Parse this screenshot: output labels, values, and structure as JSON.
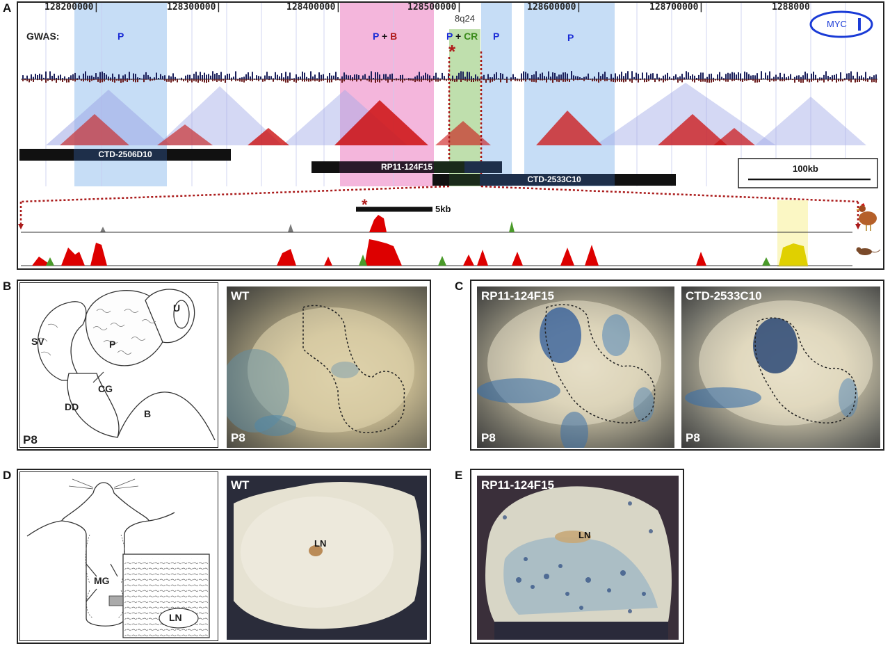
{
  "panels": {
    "A": "A",
    "B": "B",
    "C": "C",
    "D": "D",
    "E": "E"
  },
  "panelA": {
    "coordinates": [
      "128200000|",
      "128300000|",
      "128400000|",
      "128500000|",
      "128600000|",
      "128700000|",
      "1288000"
    ],
    "band": "8q24",
    "gwas_label": "GWAS:",
    "gwas_bands": {
      "p1": "P",
      "pb_p": "P",
      "pb_plus": "+",
      "pb_b": "B",
      "pcr_p": "P",
      "pcr_plus": "+",
      "pcr_cr": "CR",
      "p3": "P",
      "p4": "P"
    },
    "myc_label": "MYC",
    "clones": [
      "CTD-2506D10",
      "RP11-124F15",
      "CTD-2533C10"
    ],
    "scale_100kb": "100kb",
    "scale_5kb": "5kb",
    "asterisk": "*",
    "colors": {
      "prostate": "#bcd7f5",
      "prostate_breast": "#f2a9d6",
      "colorectal": "#b8dca4",
      "ld_red": "#cc1111",
      "ld_blue": "#9fa8e6",
      "conservation": "#dd0000",
      "dotted": "#aa1a1a"
    }
  },
  "panelB": {
    "drawing_labels": {
      "U": "U",
      "SV": "SV",
      "P": "P",
      "CG": "CG",
      "DD": "DD",
      "B": "B",
      "stage": "P8"
    },
    "photo_top": "WT",
    "photo_stage": "P8"
  },
  "panelC": {
    "photo1_top": "RP11-124F15",
    "photo1_stage": "P8",
    "photo2_top": "CTD-2533C10",
    "photo2_stage": "P8"
  },
  "panelD": {
    "drawing_labels": {
      "MG": "MG",
      "LN": "LN"
    },
    "photo_top": "WT",
    "photo_ln": "LN"
  },
  "panelE": {
    "photo_top": "RP11-124F15",
    "photo_ln": "LN"
  }
}
